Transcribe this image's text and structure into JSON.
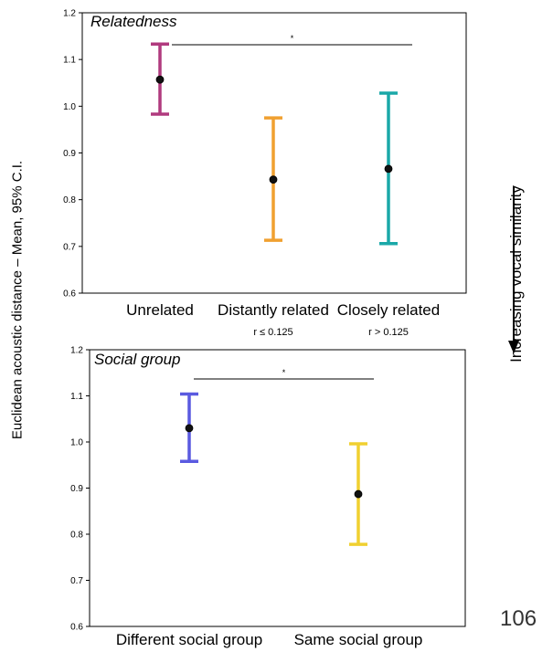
{
  "page_number": "106",
  "side_annotation": "Increasing vocal similarity",
  "shared_ylabel": "Euclidean acoustic distance – Mean, 95% C.I.",
  "chart_data": [
    {
      "type": "errorbar",
      "title": "Relatedness",
      "categories": [
        "Unrelated",
        "Distantly related",
        "Closely related"
      ],
      "category_notes": [
        "",
        "r ≤ 0.125",
        "r > 0.125"
      ],
      "means": [
        1.057,
        0.843,
        0.866
      ],
      "ci_low": [
        0.983,
        0.713,
        0.706
      ],
      "ci_high": [
        1.133,
        0.975,
        1.028
      ],
      "colors": [
        "#b03a7e",
        "#f0a030",
        "#1aa8a8"
      ],
      "ylim": [
        0.6,
        1.2
      ],
      "yticks": [
        "0.6",
        "0.7",
        "0.8",
        "0.9",
        "1.0",
        "1.1",
        "1.2"
      ],
      "significance": "*"
    },
    {
      "type": "errorbar",
      "title": "Social group",
      "categories": [
        "Different social group",
        "Same social group"
      ],
      "category_notes": [
        "",
        ""
      ],
      "means": [
        1.03,
        0.887
      ],
      "ci_low": [
        0.958,
        0.778
      ],
      "ci_high": [
        1.104,
        0.996
      ],
      "colors": [
        "#5a5ae0",
        "#f0d030"
      ],
      "ylim": [
        0.6,
        1.2
      ],
      "yticks": [
        "0.6",
        "0.7",
        "0.8",
        "0.9",
        "1.0",
        "1.1",
        "1.2"
      ],
      "significance": "*"
    }
  ]
}
